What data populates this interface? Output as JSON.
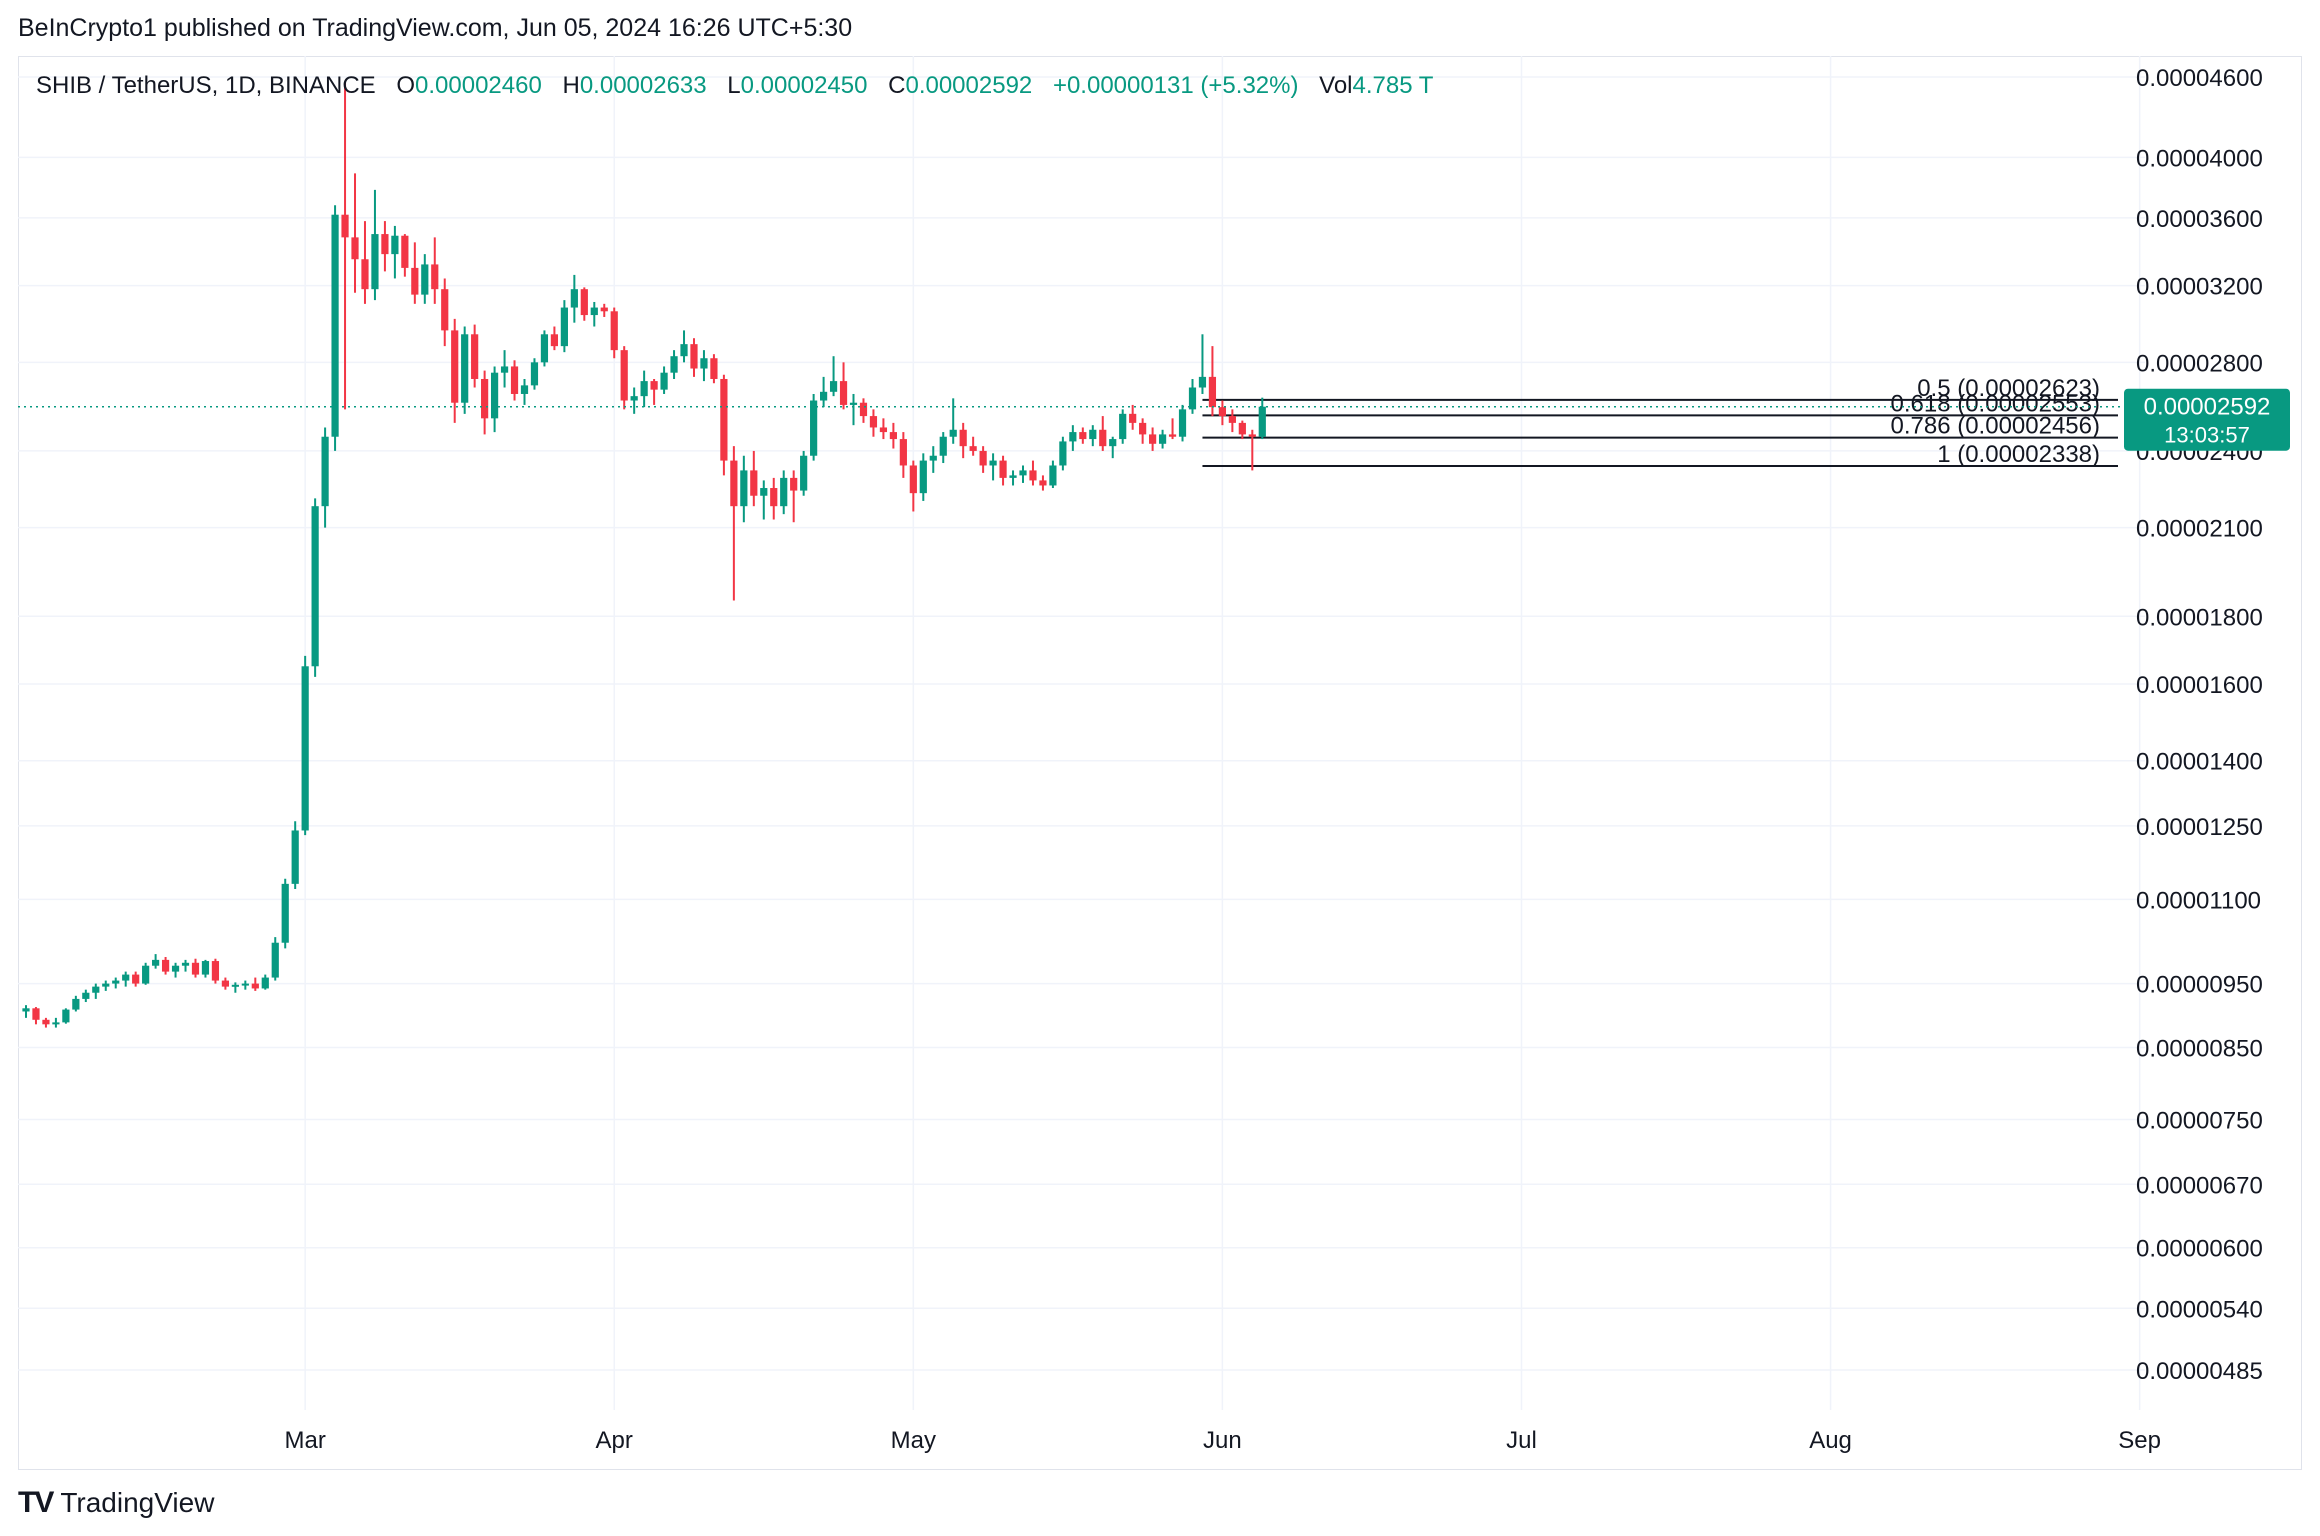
{
  "header": {
    "published": "BeInCrypto1 published on TradingView.com, Jun 05, 2024 16:26 UTC+5:30"
  },
  "legend": {
    "symbol": "SHIB / TetherUS, 1D, BINANCE",
    "o_label": "O",
    "o_value": "0.00002460",
    "h_label": "H",
    "h_value": "0.00002633",
    "l_label": "L",
    "l_value": "0.00002450",
    "c_label": "C",
    "c_value": "0.00002592",
    "change": "+0.00000131 (+5.32%)",
    "vol_label": "Vol",
    "vol_value": "4.785 T"
  },
  "brand": {
    "name": "TradingView",
    "logo_text": "TV"
  },
  "colors": {
    "up": "#089981",
    "down": "#f23645",
    "grid": "#f0f3fa",
    "text": "#131722",
    "fib_line": "#131722"
  },
  "chart_data": {
    "type": "candlestick",
    "title": "SHIB / TetherUS, 1D, BINANCE",
    "y_scale": "log",
    "grid": true,
    "y_ticks": [
      "0.00004600",
      "0.00004000",
      "0.00003600",
      "0.00003200",
      "0.00002800",
      "0.00002400",
      "0.00002100",
      "0.00001800",
      "0.00001600",
      "0.00001400",
      "0.00001250",
      "0.00001100",
      "0.00000950",
      "0.00000850",
      "0.00000750",
      "0.00000670",
      "0.00000600",
      "0.00000540",
      "0.00000485"
    ],
    "x_labels": [
      "Mar",
      "Apr",
      "May",
      "Jun",
      "Jul",
      "Aug",
      "Sep"
    ],
    "x_label_dates": [
      "2024-03-01",
      "2024-04-01",
      "2024-05-01",
      "2024-06-01",
      "2024-07-01",
      "2024-08-01",
      "2024-09-01"
    ],
    "x_range": [
      "2024-02-02",
      "2024-09-03"
    ],
    "last_price": {
      "value": "0.00002592",
      "countdown": "13:03:57"
    },
    "fib_levels": [
      {
        "label": "0.5 (0.00002623)",
        "ratio": 0.5,
        "price": 2.623e-05
      },
      {
        "label": "0.618 (0.00002553)",
        "ratio": 0.618,
        "price": 2.553e-05
      },
      {
        "label": "0.786 (0.00002456)",
        "ratio": 0.786,
        "price": 2.456e-05
      },
      {
        "label": "1 (0.00002338)",
        "ratio": 1,
        "price": 2.338e-05
      }
    ],
    "fib_start_date": "2024-05-30",
    "candles": [
      [
        "2024-02-02",
        9.05,
        9.15,
        8.95,
        9.1
      ],
      [
        "2024-02-03",
        9.1,
        9.12,
        8.85,
        8.92
      ],
      [
        "2024-02-04",
        8.92,
        8.95,
        8.8,
        8.85
      ],
      [
        "2024-02-05",
        8.85,
        8.95,
        8.8,
        8.88
      ],
      [
        "2024-02-06",
        8.88,
        9.1,
        8.86,
        9.08
      ],
      [
        "2024-02-07",
        9.08,
        9.3,
        9.05,
        9.25
      ],
      [
        "2024-02-08",
        9.25,
        9.4,
        9.2,
        9.35
      ],
      [
        "2024-02-09",
        9.35,
        9.5,
        9.25,
        9.45
      ],
      [
        "2024-02-10",
        9.45,
        9.55,
        9.38,
        9.5
      ],
      [
        "2024-02-11",
        9.5,
        9.6,
        9.42,
        9.55
      ],
      [
        "2024-02-12",
        9.55,
        9.7,
        9.45,
        9.65
      ],
      [
        "2024-02-13",
        9.65,
        9.7,
        9.45,
        9.5
      ],
      [
        "2024-02-14",
        9.5,
        9.85,
        9.48,
        9.8
      ],
      [
        "2024-02-15",
        9.8,
        10.0,
        9.75,
        9.9
      ],
      [
        "2024-02-16",
        9.9,
        9.95,
        9.65,
        9.7
      ],
      [
        "2024-02-17",
        9.7,
        9.85,
        9.6,
        9.8
      ],
      [
        "2024-02-18",
        9.8,
        9.9,
        9.7,
        9.85
      ],
      [
        "2024-02-19",
        9.85,
        9.92,
        9.6,
        9.65
      ],
      [
        "2024-02-20",
        9.65,
        9.9,
        9.6,
        9.88
      ],
      [
        "2024-02-21",
        9.88,
        9.92,
        9.5,
        9.55
      ],
      [
        "2024-02-22",
        9.55,
        9.6,
        9.4,
        9.45
      ],
      [
        "2024-02-23",
        9.45,
        9.52,
        9.35,
        9.48
      ],
      [
        "2024-02-24",
        9.48,
        9.55,
        9.4,
        9.5
      ],
      [
        "2024-02-25",
        9.5,
        9.6,
        9.38,
        9.42
      ],
      [
        "2024-02-26",
        9.42,
        9.65,
        9.4,
        9.6
      ],
      [
        "2024-02-27",
        9.6,
        10.3,
        9.55,
        10.2
      ],
      [
        "2024-02-28",
        10.2,
        11.4,
        10.1,
        11.3
      ],
      [
        "2024-02-29",
        11.3,
        12.6,
        11.2,
        12.4
      ],
      [
        "2024-03-01",
        12.4,
        16.8,
        12.3,
        16.5
      ],
      [
        "2024-03-02",
        16.5,
        22.1,
        16.2,
        21.8
      ],
      [
        "2024-03-03",
        21.8,
        25.0,
        21.0,
        24.6
      ],
      [
        "2024-03-04",
        24.6,
        36.8,
        24.0,
        36.2
      ],
      [
        "2024-03-05",
        36.2,
        45.5,
        25.8,
        34.8
      ],
      [
        "2024-03-06",
        34.8,
        38.9,
        31.6,
        33.5
      ],
      [
        "2024-03-07",
        33.5,
        35.8,
        31.0,
        31.8
      ],
      [
        "2024-03-08",
        31.8,
        37.8,
        31.2,
        35.0
      ],
      [
        "2024-03-09",
        35.0,
        35.8,
        32.8,
        33.8
      ],
      [
        "2024-03-10",
        33.8,
        35.5,
        32.4,
        34.9
      ],
      [
        "2024-03-11",
        34.9,
        35.0,
        32.5,
        33.0
      ],
      [
        "2024-03-12",
        33.0,
        34.5,
        31.0,
        31.5
      ],
      [
        "2024-03-13",
        31.5,
        33.8,
        31.0,
        33.2
      ],
      [
        "2024-03-14",
        33.2,
        34.8,
        31.0,
        31.8
      ],
      [
        "2024-03-15",
        31.8,
        32.4,
        28.8,
        29.6
      ],
      [
        "2024-03-16",
        29.6,
        30.2,
        25.2,
        26.1
      ],
      [
        "2024-03-17",
        26.1,
        29.8,
        25.6,
        29.4
      ],
      [
        "2024-03-18",
        29.4,
        29.9,
        26.8,
        27.2
      ],
      [
        "2024-03-19",
        27.2,
        27.6,
        24.7,
        25.4
      ],
      [
        "2024-03-20",
        25.4,
        27.8,
        24.8,
        27.5
      ],
      [
        "2024-03-21",
        27.5,
        28.6,
        26.8,
        27.8
      ],
      [
        "2024-03-22",
        27.8,
        28.1,
        26.2,
        26.5
      ],
      [
        "2024-03-23",
        26.5,
        27.2,
        26.0,
        26.9
      ],
      [
        "2024-03-24",
        26.9,
        28.2,
        26.7,
        28.0
      ],
      [
        "2024-03-25",
        28.0,
        29.6,
        27.8,
        29.4
      ],
      [
        "2024-03-26",
        29.4,
        29.8,
        28.6,
        28.8
      ],
      [
        "2024-03-27",
        28.8,
        31.2,
        28.5,
        30.8
      ],
      [
        "2024-03-28",
        30.8,
        32.6,
        30.0,
        31.8
      ],
      [
        "2024-03-29",
        31.8,
        31.9,
        30.1,
        30.4
      ],
      [
        "2024-03-30",
        30.4,
        31.1,
        29.8,
        30.8
      ],
      [
        "2024-03-31",
        30.8,
        31.0,
        30.3,
        30.6
      ],
      [
        "2024-04-01",
        30.6,
        30.8,
        28.2,
        28.6
      ],
      [
        "2024-04-02",
        28.6,
        28.8,
        25.8,
        26.2
      ],
      [
        "2024-04-03",
        26.2,
        26.8,
        25.6,
        26.4
      ],
      [
        "2024-04-04",
        26.4,
        27.6,
        25.9,
        27.1
      ],
      [
        "2024-04-05",
        27.1,
        27.2,
        26.0,
        26.7
      ],
      [
        "2024-04-06",
        26.7,
        27.8,
        26.5,
        27.5
      ],
      [
        "2024-04-07",
        27.5,
        28.6,
        27.2,
        28.3
      ],
      [
        "2024-04-08",
        28.3,
        29.6,
        28.0,
        28.9
      ],
      [
        "2024-04-09",
        28.9,
        29.2,
        27.3,
        27.7
      ],
      [
        "2024-04-10",
        27.7,
        28.6,
        27.1,
        28.2
      ],
      [
        "2024-04-11",
        28.2,
        28.4,
        27.0,
        27.2
      ],
      [
        "2024-04-12",
        27.2,
        27.4,
        23.0,
        23.6
      ],
      [
        "2024-04-13",
        23.6,
        24.2,
        18.5,
        21.8
      ],
      [
        "2024-04-14",
        21.8,
        23.8,
        21.2,
        23.2
      ],
      [
        "2024-04-15",
        23.2,
        24.0,
        21.8,
        22.2
      ],
      [
        "2024-04-16",
        22.2,
        22.8,
        21.3,
        22.5
      ],
      [
        "2024-04-17",
        22.5,
        22.9,
        21.3,
        21.8
      ],
      [
        "2024-04-18",
        21.8,
        23.2,
        21.5,
        22.9
      ],
      [
        "2024-04-19",
        22.9,
        23.2,
        21.2,
        22.4
      ],
      [
        "2024-04-20",
        22.4,
        24.0,
        22.2,
        23.8
      ],
      [
        "2024-04-21",
        23.8,
        26.5,
        23.6,
        26.2
      ],
      [
        "2024-04-22",
        26.2,
        27.3,
        25.9,
        26.6
      ],
      [
        "2024-04-23",
        26.6,
        28.3,
        26.4,
        27.1
      ],
      [
        "2024-04-24",
        27.1,
        28.0,
        25.8,
        26.0
      ],
      [
        "2024-04-25",
        26.0,
        26.5,
        25.1,
        26.1
      ],
      [
        "2024-04-26",
        26.1,
        26.3,
        25.2,
        25.5
      ],
      [
        "2024-04-27",
        25.5,
        25.8,
        24.6,
        25.0
      ],
      [
        "2024-04-28",
        25.0,
        25.4,
        24.5,
        24.8
      ],
      [
        "2024-04-29",
        24.8,
        25.2,
        24.1,
        24.5
      ],
      [
        "2024-04-30",
        24.5,
        24.8,
        22.9,
        23.4
      ],
      [
        "2024-05-01",
        23.4,
        23.6,
        21.6,
        22.3
      ],
      [
        "2024-05-02",
        22.3,
        23.9,
        22.0,
        23.6
      ],
      [
        "2024-05-03",
        23.6,
        24.2,
        23.1,
        23.8
      ],
      [
        "2024-05-04",
        23.8,
        24.8,
        23.5,
        24.6
      ],
      [
        "2024-05-05",
        24.6,
        26.3,
        24.3,
        24.9
      ],
      [
        "2024-05-06",
        24.9,
        25.2,
        23.7,
        24.2
      ],
      [
        "2024-05-07",
        24.2,
        24.6,
        23.8,
        24.0
      ],
      [
        "2024-05-08",
        24.0,
        24.2,
        23.1,
        23.4
      ],
      [
        "2024-05-09",
        23.4,
        23.9,
        22.8,
        23.6
      ],
      [
        "2024-05-10",
        23.6,
        23.8,
        22.6,
        22.9
      ],
      [
        "2024-05-11",
        22.9,
        23.2,
        22.6,
        23.0
      ],
      [
        "2024-05-12",
        23.0,
        23.4,
        22.7,
        23.2
      ],
      [
        "2024-05-13",
        23.2,
        23.6,
        22.6,
        22.8
      ],
      [
        "2024-05-14",
        22.8,
        23.0,
        22.4,
        22.6
      ],
      [
        "2024-05-15",
        22.6,
        23.6,
        22.5,
        23.4
      ],
      [
        "2024-05-16",
        23.4,
        24.6,
        23.2,
        24.4
      ],
      [
        "2024-05-17",
        24.4,
        25.1,
        24.0,
        24.8
      ],
      [
        "2024-05-18",
        24.8,
        25.0,
        24.3,
        24.5
      ],
      [
        "2024-05-19",
        24.5,
        25.1,
        24.2,
        24.9
      ],
      [
        "2024-05-20",
        24.9,
        25.5,
        24.0,
        24.2
      ],
      [
        "2024-05-21",
        24.2,
        24.6,
        23.7,
        24.5
      ],
      [
        "2024-05-22",
        24.5,
        25.8,
        24.3,
        25.6
      ],
      [
        "2024-05-23",
        25.6,
        26.0,
        24.9,
        25.2
      ],
      [
        "2024-05-24",
        25.2,
        25.4,
        24.3,
        24.7
      ],
      [
        "2024-05-25",
        24.7,
        25.0,
        24.0,
        24.3
      ],
      [
        "2024-05-26",
        24.3,
        24.9,
        24.1,
        24.7
      ],
      [
        "2024-05-27",
        24.7,
        25.4,
        24.5,
        24.6
      ],
      [
        "2024-05-28",
        24.6,
        26.0,
        24.4,
        25.8
      ],
      [
        "2024-05-29",
        25.8,
        27.2,
        25.6,
        26.8
      ],
      [
        "2024-05-30",
        26.8,
        29.4,
        26.5,
        27.3
      ],
      [
        "2024-05-31",
        27.3,
        28.8,
        25.5,
        25.9
      ],
      [
        "2024-06-01",
        25.9,
        26.2,
        25.1,
        25.5
      ],
      [
        "2024-06-02",
        25.5,
        25.8,
        24.8,
        25.2
      ],
      [
        "2024-06-03",
        25.2,
        25.3,
        24.5,
        24.7
      ],
      [
        "2024-06-04",
        24.7,
        24.9,
        23.2,
        24.6
      ],
      [
        "2024-06-05",
        24.6,
        26.33,
        24.5,
        25.92
      ]
    ]
  }
}
